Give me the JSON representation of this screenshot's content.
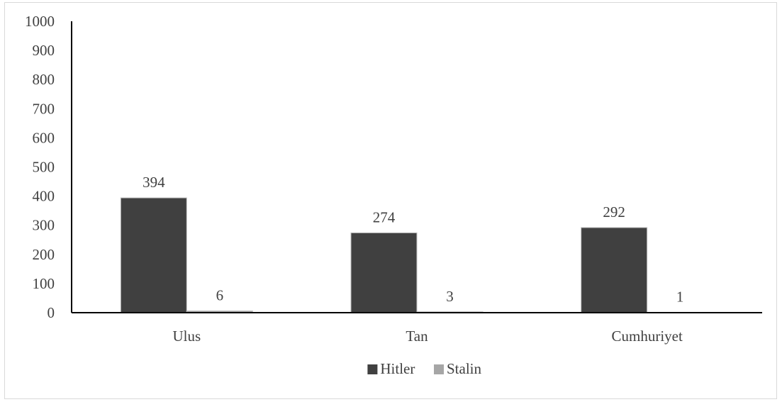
{
  "chart_data": {
    "type": "bar",
    "title": "",
    "xlabel": "",
    "ylabel": "",
    "categories": [
      "Ulus",
      "Tan",
      "Cumhuriyet"
    ],
    "series": [
      {
        "name": "Hitler",
        "values": [
          394,
          274,
          292
        ],
        "color": "#404040"
      },
      {
        "name": "Stalin",
        "values": [
          6,
          3,
          1
        ],
        "color": "#a6a6a6"
      }
    ],
    "ylim": [
      0,
      1000
    ],
    "yticks": [
      "0",
      "100",
      "200",
      "300",
      "400",
      "500",
      "600",
      "700",
      "800",
      "900",
      "1000"
    ],
    "grid": false,
    "legend_position": "bottom-center",
    "axis_color": "#000000",
    "text_color": "#404040"
  }
}
